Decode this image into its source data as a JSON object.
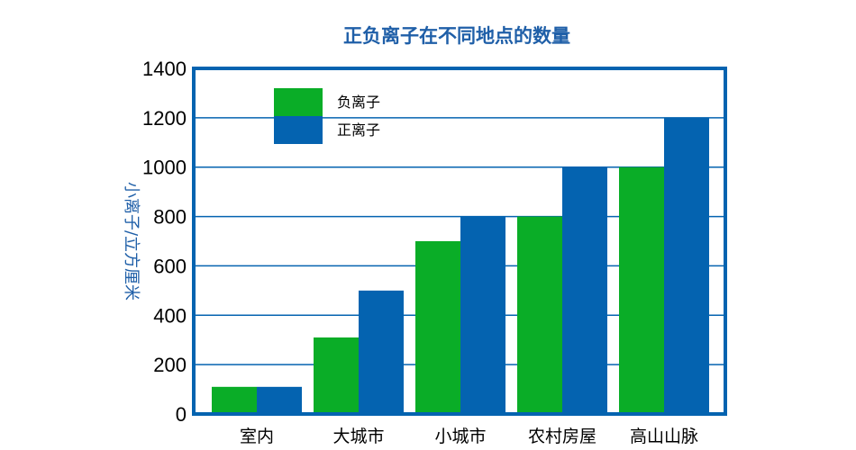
{
  "chart_data": {
    "type": "bar",
    "title": "正负离子在不同地点的数量",
    "ylabel": "小离子/立方厘米",
    "xlabel": "",
    "categories": [
      "室内",
      "大城市",
      "小城市",
      "农村房屋",
      "高山山脉"
    ],
    "series": [
      {
        "name": "负离子",
        "color": "#0aad27",
        "values": [
          110,
          310,
          700,
          800,
          1000
        ]
      },
      {
        "name": "正离子",
        "color": "#0463b0",
        "values": [
          110,
          500,
          800,
          1000,
          1200
        ]
      }
    ],
    "ylim": [
      0,
      1400
    ],
    "yticks": [
      "0",
      "200",
      "400",
      "600",
      "800",
      "1000",
      "1200",
      "1400"
    ],
    "grid": true,
    "legend_position": "top-left",
    "frame_color": "#0463b0",
    "grid_color": "#0463b0"
  }
}
